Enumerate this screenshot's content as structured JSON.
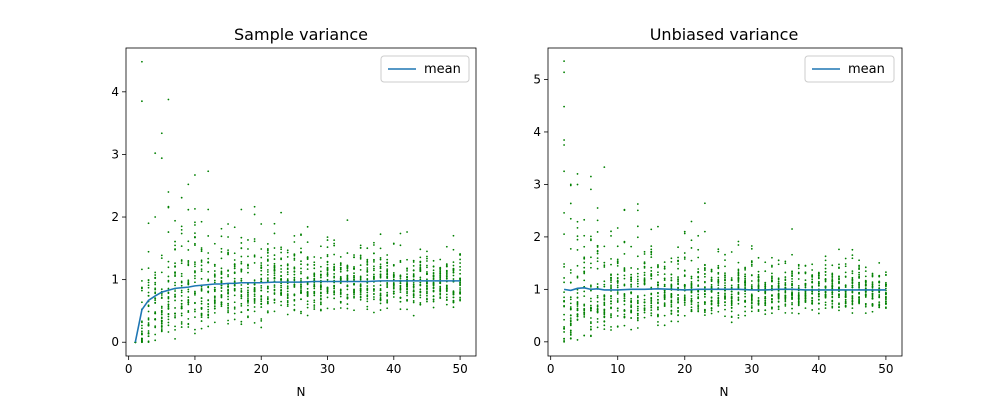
{
  "colors": {
    "points": "#008000",
    "mean_line": "#1f77b4",
    "axes": "#000000",
    "background": "#ffffff"
  },
  "chart_data": [
    {
      "type": "scatter",
      "title": "Sample variance",
      "xlabel": "N",
      "ylabel": "",
      "xlim": [
        -0.4,
        52.4
      ],
      "ylim": [
        -0.22,
        4.7
      ],
      "xticks": [
        0,
        10,
        20,
        30,
        40,
        50
      ],
      "yticks": [
        0,
        1,
        2,
        3,
        4
      ],
      "legend": {
        "position": "top-right",
        "entries": [
          "mean"
        ]
      },
      "grid": false,
      "series": [
        {
          "name": "mean",
          "kind": "line",
          "x": [
            1,
            2,
            3,
            4,
            5,
            6,
            7,
            8,
            9,
            10,
            11,
            12,
            13,
            14,
            15,
            16,
            17,
            18,
            19,
            20,
            22,
            24,
            26,
            28,
            30,
            32,
            34,
            36,
            38,
            40,
            42,
            44,
            46,
            48,
            50
          ],
          "y": [
            0,
            0.52,
            0.67,
            0.74,
            0.8,
            0.83,
            0.86,
            0.87,
            0.88,
            0.9,
            0.91,
            0.92,
            0.93,
            0.93,
            0.94,
            0.94,
            0.95,
            0.95,
            0.95,
            0.95,
            0.96,
            0.96,
            0.96,
            0.97,
            0.97,
            0.97,
            0.97,
            0.97,
            0.98,
            0.98,
            0.98,
            0.98,
            0.98,
            0.98,
            0.98
          ]
        }
      ],
      "outliers": [
        {
          "x": 2,
          "y": 4.48
        },
        {
          "x": 4,
          "y": 3.02
        },
        {
          "x": 5,
          "y": 2.94
        },
        {
          "x": 6,
          "y": 2.4
        },
        {
          "x": 6,
          "y": 2.15
        },
        {
          "x": 10,
          "y": 2.13
        },
        {
          "x": 12,
          "y": 2.12
        },
        {
          "x": 17,
          "y": 2.12
        },
        {
          "x": 23,
          "y": 2.07
        },
        {
          "x": 33,
          "y": 1.95
        },
        {
          "x": 3,
          "y": 1.9
        },
        {
          "x": 8,
          "y": 1.85
        }
      ],
      "scatter": {
        "n_min": 1,
        "n_max": 50,
        "samples_per_n": 30,
        "description": "green point cloud: sample variance vs N, spread narrows toward mean as N grows"
      }
    },
    {
      "type": "scatter",
      "title": "Unbiased variance",
      "xlabel": "N",
      "ylabel": "",
      "xlim": [
        -0.4,
        52.4
      ],
      "ylim": [
        -0.27,
        5.6
      ],
      "xticks": [
        0,
        10,
        20,
        30,
        40,
        50
      ],
      "yticks": [
        0,
        1,
        2,
        3,
        4,
        5
      ],
      "legend": {
        "position": "top-right",
        "entries": [
          "mean"
        ]
      },
      "grid": false,
      "series": [
        {
          "name": "mean",
          "kind": "line",
          "x": [
            2,
            3,
            4,
            5,
            6,
            7,
            8,
            9,
            10,
            12,
            14,
            16,
            18,
            20,
            22,
            24,
            26,
            28,
            30,
            32,
            34,
            36,
            38,
            40,
            42,
            44,
            46,
            48,
            50
          ],
          "y": [
            1.0,
            0.98,
            1.02,
            1.03,
            1.0,
            1.01,
            0.99,
            0.99,
            0.99,
            1.0,
            1.0,
            1.01,
            1.0,
            0.99,
            1.0,
            1.0,
            1.0,
            1.0,
            0.99,
            0.99,
            1.0,
            1.0,
            0.99,
            0.99,
            0.99,
            0.99,
            0.99,
            0.99,
            0.99
          ]
        }
      ],
      "outliers": [
        {
          "x": 2,
          "y": 5.35
        },
        {
          "x": 8,
          "y": 3.33
        },
        {
          "x": 2,
          "y": 3.25
        },
        {
          "x": 4,
          "y": 3.2
        },
        {
          "x": 6,
          "y": 3.15
        },
        {
          "x": 3,
          "y": 3.0
        },
        {
          "x": 7,
          "y": 2.55
        },
        {
          "x": 11,
          "y": 2.52
        },
        {
          "x": 36,
          "y": 2.15
        },
        {
          "x": 23,
          "y": 2.1
        }
      ],
      "scatter": {
        "n_min": 2,
        "n_max": 50,
        "samples_per_n": 30,
        "description": "green point cloud: unbiased variance vs N, centered around 1, spread narrows as N grows"
      }
    }
  ]
}
